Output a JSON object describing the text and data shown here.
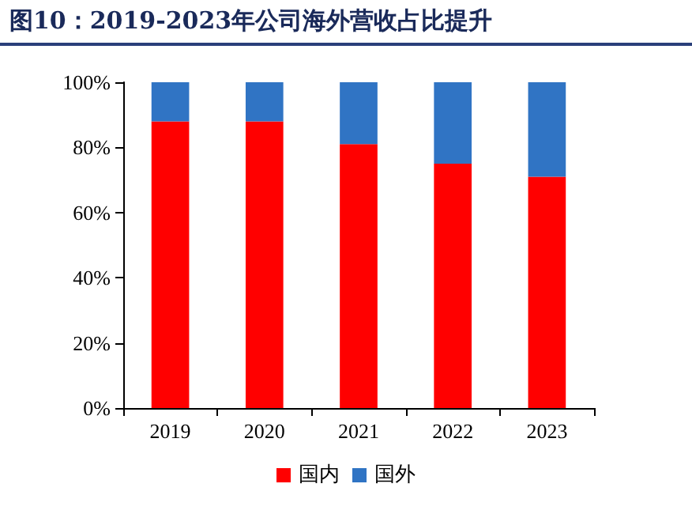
{
  "chart_data": {
    "type": "bar",
    "title": "图10：2019-2023年公司海外营收占比提升",
    "stacked": true,
    "categories": [
      "2019",
      "2020",
      "2021",
      "2022",
      "2023"
    ],
    "series": [
      {
        "name": "国内",
        "color": "#ff0000",
        "values": [
          88,
          88,
          81,
          75,
          71
        ]
      },
      {
        "name": "国外",
        "color": "#3074c4",
        "values": [
          12,
          12,
          19,
          25,
          29
        ]
      }
    ],
    "ylim": [
      0,
      100
    ],
    "yticks": [
      {
        "value": 0,
        "label": "0%"
      },
      {
        "value": 20,
        "label": "20%"
      },
      {
        "value": 40,
        "label": "40%"
      },
      {
        "value": 60,
        "label": "60%"
      },
      {
        "value": 80,
        "label": "80%"
      },
      {
        "value": 100,
        "label": "100%"
      }
    ],
    "grid": false,
    "legend": "bottom"
  }
}
